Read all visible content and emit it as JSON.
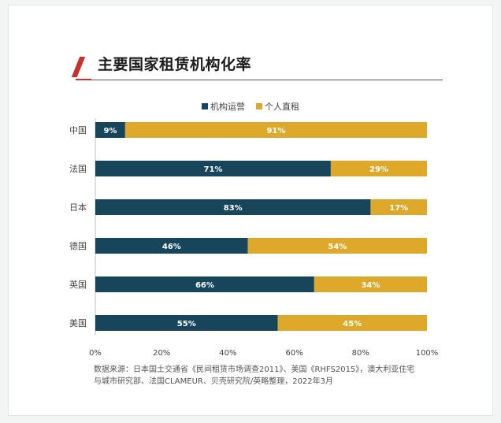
{
  "title": "主要国家租赁机构化率",
  "colors": {
    "institution": "#17465c",
    "individual": "#dea82a",
    "accent": "#c8302c"
  },
  "legend": [
    "机构运营",
    "个人直租"
  ],
  "chart_data": {
    "type": "bar",
    "orientation": "horizontal",
    "stacked": true,
    "categories": [
      "中国",
      "法国",
      "日本",
      "德国",
      "英国",
      "美国"
    ],
    "series": [
      {
        "name": "机构运营",
        "values": [
          9,
          71,
          83,
          46,
          66,
          55
        ],
        "labels": [
          "9%",
          "71%",
          "83%",
          "46%",
          "66%",
          "55%"
        ]
      },
      {
        "name": "个人直租",
        "values": [
          91,
          29,
          17,
          54,
          34,
          45
        ],
        "labels": [
          "91%",
          "29%",
          "17%",
          "54%",
          "34%",
          "45%"
        ]
      }
    ],
    "xlim": [
      0,
      100
    ],
    "x_ticks": [
      "0%",
      "20%",
      "40%",
      "60%",
      "80%",
      "100%"
    ],
    "legend_position": "top-center",
    "grid": false
  },
  "source_lines": [
    "数据来源：日本国土交通省《民间租赁市场调查2011》、美国《RHFS2015》，澳大利亚住宅",
    "与城市研究部、法国CLAMEUR、贝壳研究院/英略整理，2022年3月"
  ]
}
